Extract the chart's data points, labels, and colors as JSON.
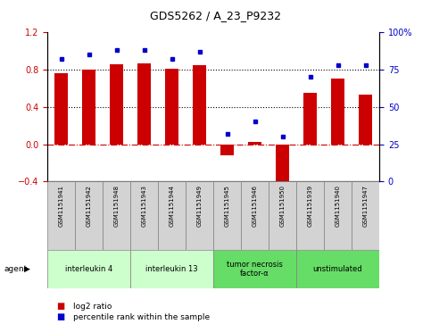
{
  "title": "GDS5262 / A_23_P9232",
  "samples": [
    "GSM1151941",
    "GSM1151942",
    "GSM1151948",
    "GSM1151943",
    "GSM1151944",
    "GSM1151949",
    "GSM1151945",
    "GSM1151946",
    "GSM1151950",
    "GSM1151939",
    "GSM1151940",
    "GSM1151947"
  ],
  "log2_ratio": [
    0.76,
    0.8,
    0.86,
    0.87,
    0.81,
    0.85,
    -0.12,
    0.02,
    -0.52,
    0.55,
    0.7,
    0.53
  ],
  "percentile": [
    82,
    85,
    88,
    88,
    82,
    87,
    32,
    40,
    30,
    70,
    78,
    78
  ],
  "agent_groups": [
    {
      "label": "interleukin 4",
      "start": 0,
      "end": 2,
      "color": "#ccffcc"
    },
    {
      "label": "interleukin 13",
      "start": 3,
      "end": 5,
      "color": "#ccffcc"
    },
    {
      "label": "tumor necrosis\nfactor-α",
      "start": 6,
      "end": 8,
      "color": "#66dd66"
    },
    {
      "label": "unstimulated",
      "start": 9,
      "end": 11,
      "color": "#66dd66"
    }
  ],
  "bar_color": "#cc0000",
  "dot_color": "#0000cc",
  "ylim_left": [
    -0.4,
    1.2
  ],
  "ylim_right": [
    0,
    100
  ],
  "yticks_left": [
    -0.4,
    0,
    0.4,
    0.8,
    1.2
  ],
  "yticks_right": [
    0,
    25,
    50,
    75,
    100
  ],
  "ylabel_left_color": "#cc0000",
  "ylabel_right_color": "#0000cc",
  "hline_zero_color": "#cc0000",
  "dotted_line_values": [
    0.4,
    0.8
  ],
  "legend_bar_label": "log2 ratio",
  "legend_dot_label": "percentile rank within the sample",
  "sample_box_color": "#d3d3d3",
  "bar_width": 0.5
}
